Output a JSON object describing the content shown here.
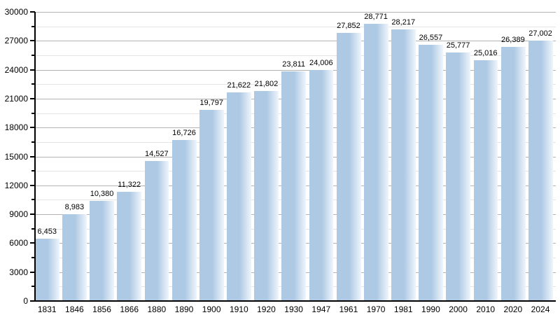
{
  "chart_data": {
    "type": "bar",
    "title": "",
    "xlabel": "",
    "ylabel": "",
    "categories": [
      "1831",
      "1846",
      "1856",
      "1866",
      "1880",
      "1890",
      "1900",
      "1910",
      "1920",
      "1930",
      "1947",
      "1961",
      "1970",
      "1981",
      "1990",
      "2000",
      "2010",
      "2020",
      "2024"
    ],
    "values": [
      6453,
      8983,
      10380,
      11322,
      14527,
      16726,
      19797,
      21622,
      21802,
      23811,
      24006,
      27852,
      28771,
      28217,
      26557,
      25777,
      25016,
      26389,
      27002
    ],
    "value_labels": [
      "6,453",
      "8,983",
      "10,380",
      "11,322",
      "14,527",
      "16,726",
      "19,797",
      "21,622",
      "21,802",
      "23,811",
      "24,006",
      "27,852",
      "28,771",
      "28,217",
      "26,557",
      "25,777",
      "25,016",
      "26,389",
      "27,002"
    ],
    "ylim": [
      0,
      30000
    ],
    "ytick_step": 3000,
    "y_minor_step": 1500,
    "y_tick_labels": [
      "0",
      "3000",
      "6000",
      "9000",
      "12000",
      "15000",
      "18000",
      "21000",
      "24000",
      "27000",
      "30000"
    ],
    "grid": "on",
    "legend": "none",
    "colors": {
      "bar_main": "#aec9e4",
      "bar_fade": "#eff5fb",
      "grid_major": "#b3b3b3",
      "grid_minor": "#e4e4e4",
      "axis": "#000000",
      "text": "#000000",
      "background": "#ffffff"
    }
  }
}
